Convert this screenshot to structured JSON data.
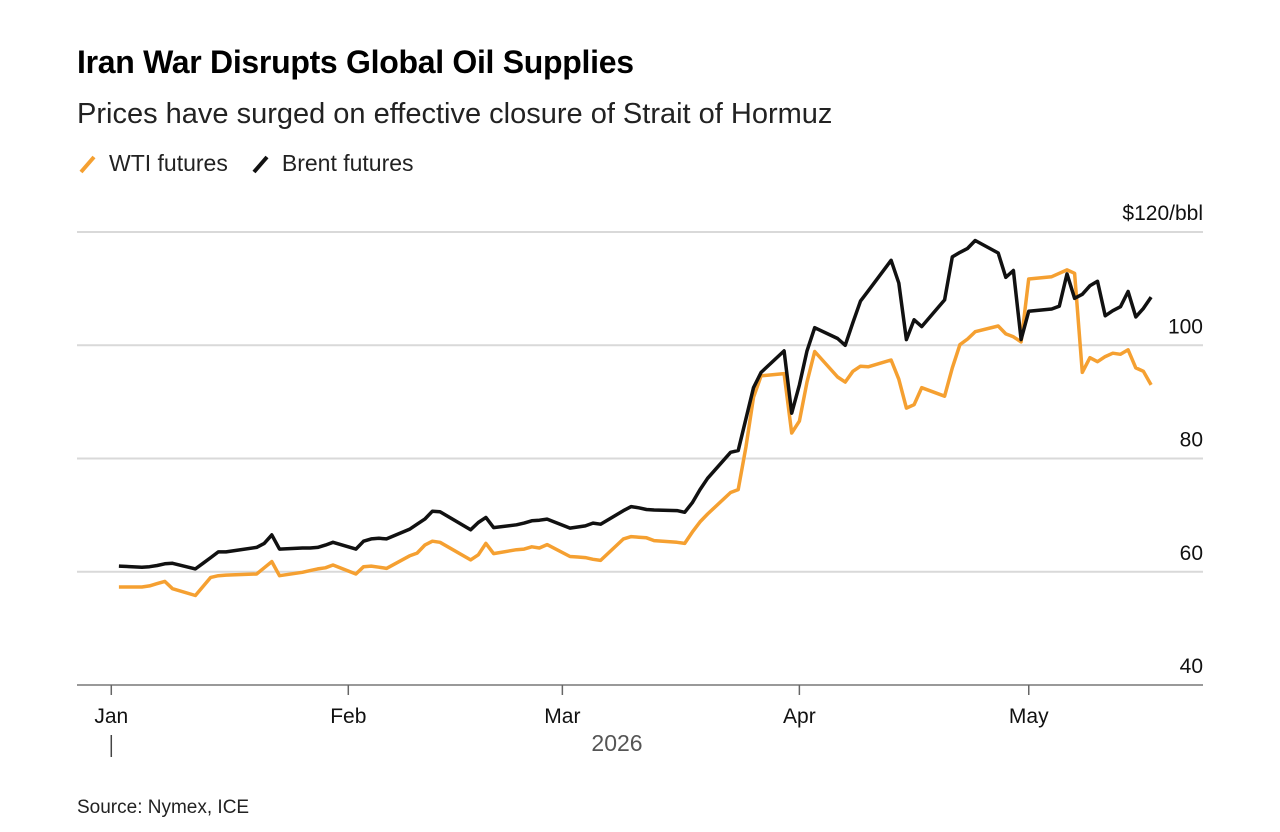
{
  "chart_data": {
    "type": "line",
    "title": "Iran War Disrupts Global Oil Supplies",
    "subtitle": "Prices have surged on effective closure of Strait of Hormuz",
    "source": "Source: Nymex, ICE",
    "x_year_label": "2026",
    "x_ticks": [
      {
        "date": "2026-01-01",
        "label": "Jan"
      },
      {
        "date": "2026-02-01",
        "label": "Feb"
      },
      {
        "date": "2026-03-01",
        "label": "Mar"
      },
      {
        "date": "2026-04-01",
        "label": "Apr"
      },
      {
        "date": "2026-05-01",
        "label": "May"
      }
    ],
    "x_range": [
      "2025-12-30",
      "2026-05-20"
    ],
    "y_ticks": [
      {
        "value": 40,
        "label": "40"
      },
      {
        "value": 60,
        "label": "60"
      },
      {
        "value": 80,
        "label": "80"
      },
      {
        "value": 100,
        "label": "100"
      },
      {
        "value": 120,
        "label": "$120/bbl"
      }
    ],
    "ylim": [
      40,
      120
    ],
    "grid": true,
    "legend_position": "top-left",
    "series": [
      {
        "name": "WTI futures",
        "color": "#f5a031",
        "points": [
          [
            "2026-01-02",
            57.3
          ],
          [
            "2026-01-05",
            57.3
          ],
          [
            "2026-01-06",
            57.5
          ],
          [
            "2026-01-07",
            57.9
          ],
          [
            "2026-01-08",
            58.3
          ],
          [
            "2026-01-09",
            57.0
          ],
          [
            "2026-01-12",
            55.8
          ],
          [
            "2026-01-13",
            57.4
          ],
          [
            "2026-01-14",
            59.0
          ],
          [
            "2026-01-15",
            59.3
          ],
          [
            "2026-01-16",
            59.4
          ],
          [
            "2026-01-20",
            59.6
          ],
          [
            "2026-01-21",
            60.7
          ],
          [
            "2026-01-22",
            61.8
          ],
          [
            "2026-01-23",
            59.3
          ],
          [
            "2026-01-26",
            59.9
          ],
          [
            "2026-01-27",
            60.2
          ],
          [
            "2026-01-28",
            60.5
          ],
          [
            "2026-01-29",
            60.7
          ],
          [
            "2026-01-30",
            61.2
          ],
          [
            "2026-02-02",
            59.6
          ],
          [
            "2026-02-03",
            60.9
          ],
          [
            "2026-02-04",
            61.0
          ],
          [
            "2026-02-05",
            60.8
          ],
          [
            "2026-02-06",
            60.6
          ],
          [
            "2026-02-09",
            62.8
          ],
          [
            "2026-02-10",
            63.3
          ],
          [
            "2026-02-11",
            64.7
          ],
          [
            "2026-02-12",
            65.4
          ],
          [
            "2026-02-13",
            65.2
          ],
          [
            "2026-02-17",
            62.1
          ],
          [
            "2026-02-18",
            63.0
          ],
          [
            "2026-02-19",
            65.0
          ],
          [
            "2026-02-20",
            63.2
          ],
          [
            "2026-02-23",
            63.9
          ],
          [
            "2026-02-24",
            64.0
          ],
          [
            "2026-02-25",
            64.4
          ],
          [
            "2026-02-26",
            64.2
          ],
          [
            "2026-02-27",
            64.8
          ],
          [
            "2026-03-02",
            62.7
          ],
          [
            "2026-03-03",
            62.6
          ],
          [
            "2026-03-04",
            62.5
          ],
          [
            "2026-03-05",
            62.2
          ],
          [
            "2026-03-06",
            62.0
          ],
          [
            "2026-03-09",
            65.8
          ],
          [
            "2026-03-10",
            66.2
          ],
          [
            "2026-03-11",
            66.1
          ],
          [
            "2026-03-12",
            66.0
          ],
          [
            "2026-03-13",
            65.5
          ],
          [
            "2026-03-16",
            65.2
          ],
          [
            "2026-03-17",
            65.0
          ],
          [
            "2026-03-18",
            67.0
          ],
          [
            "2026-03-19",
            68.8
          ],
          [
            "2026-03-20",
            70.2
          ],
          [
            "2026-03-23",
            74.0
          ],
          [
            "2026-03-24",
            74.5
          ],
          [
            "2026-03-25",
            82.0
          ],
          [
            "2026-03-26",
            90.8
          ],
          [
            "2026-03-27",
            94.6
          ],
          [
            "2026-03-30",
            95.0
          ],
          [
            "2026-03-31",
            84.5
          ],
          [
            "2026-04-01",
            86.6
          ],
          [
            "2026-04-02",
            93.5
          ],
          [
            "2026-04-03",
            98.9
          ],
          [
            "2026-04-06",
            94.4
          ],
          [
            "2026-04-07",
            93.5
          ],
          [
            "2026-04-08",
            95.4
          ],
          [
            "2026-04-09",
            96.3
          ],
          [
            "2026-04-10",
            96.2
          ],
          [
            "2026-04-13",
            97.4
          ],
          [
            "2026-04-14",
            94.0
          ],
          [
            "2026-04-15",
            88.9
          ],
          [
            "2026-04-16",
            89.5
          ],
          [
            "2026-04-17",
            92.5
          ],
          [
            "2026-04-20",
            91.0
          ],
          [
            "2026-04-21",
            96.0
          ],
          [
            "2026-04-22",
            100.1
          ],
          [
            "2026-04-23",
            101.1
          ],
          [
            "2026-04-24",
            102.4
          ],
          [
            "2026-04-27",
            103.4
          ],
          [
            "2026-04-28",
            102.0
          ],
          [
            "2026-04-29",
            101.5
          ],
          [
            "2026-04-30",
            100.6
          ],
          [
            "2026-05-01",
            111.7
          ],
          [
            "2026-05-04",
            112.1
          ],
          [
            "2026-05-05",
            112.7
          ],
          [
            "2026-05-06",
            113.3
          ],
          [
            "2026-05-07",
            112.7
          ],
          [
            "2026-05-08",
            95.2
          ],
          [
            "2026-05-09",
            97.8
          ],
          [
            "2026-05-10",
            97.1
          ],
          [
            "2026-05-11",
            98.0
          ],
          [
            "2026-05-12",
            98.6
          ],
          [
            "2026-05-13",
            98.4
          ],
          [
            "2026-05-14",
            99.2
          ],
          [
            "2026-05-15",
            96.0
          ],
          [
            "2026-05-16",
            95.4
          ],
          [
            "2026-05-17",
            93.0
          ]
        ]
      },
      {
        "name": "Brent futures",
        "color": "#111111",
        "points": [
          [
            "2026-01-02",
            61.0
          ],
          [
            "2026-01-05",
            60.8
          ],
          [
            "2026-01-06",
            60.9
          ],
          [
            "2026-01-07",
            61.1
          ],
          [
            "2026-01-08",
            61.4
          ],
          [
            "2026-01-09",
            61.5
          ],
          [
            "2026-01-12",
            60.5
          ],
          [
            "2026-01-13",
            61.5
          ],
          [
            "2026-01-14",
            62.5
          ],
          [
            "2026-01-15",
            63.5
          ],
          [
            "2026-01-16",
            63.5
          ],
          [
            "2026-01-20",
            64.3
          ],
          [
            "2026-01-21",
            65.0
          ],
          [
            "2026-01-22",
            66.5
          ],
          [
            "2026-01-23",
            64.0
          ],
          [
            "2026-01-26",
            64.2
          ],
          [
            "2026-01-27",
            64.2
          ],
          [
            "2026-01-28",
            64.3
          ],
          [
            "2026-01-29",
            64.7
          ],
          [
            "2026-01-30",
            65.2
          ],
          [
            "2026-02-02",
            64.0
          ],
          [
            "2026-02-03",
            65.4
          ],
          [
            "2026-02-04",
            65.8
          ],
          [
            "2026-02-05",
            65.9
          ],
          [
            "2026-02-06",
            65.8
          ],
          [
            "2026-02-09",
            67.5
          ],
          [
            "2026-02-10",
            68.4
          ],
          [
            "2026-02-11",
            69.3
          ],
          [
            "2026-02-12",
            70.7
          ],
          [
            "2026-02-13",
            70.6
          ],
          [
            "2026-02-17",
            67.4
          ],
          [
            "2026-02-18",
            68.7
          ],
          [
            "2026-02-19",
            69.6
          ],
          [
            "2026-02-20",
            67.8
          ],
          [
            "2026-02-23",
            68.3
          ],
          [
            "2026-02-24",
            68.6
          ],
          [
            "2026-02-25",
            69.0
          ],
          [
            "2026-02-26",
            69.1
          ],
          [
            "2026-02-27",
            69.3
          ],
          [
            "2026-03-02",
            67.7
          ],
          [
            "2026-03-03",
            67.9
          ],
          [
            "2026-03-04",
            68.1
          ],
          [
            "2026-03-05",
            68.6
          ],
          [
            "2026-03-06",
            68.4
          ],
          [
            "2026-03-09",
            70.8
          ],
          [
            "2026-03-10",
            71.5
          ],
          [
            "2026-03-11",
            71.3
          ],
          [
            "2026-03-12",
            71.0
          ],
          [
            "2026-03-13",
            70.9
          ],
          [
            "2026-03-16",
            70.8
          ],
          [
            "2026-03-17",
            70.5
          ],
          [
            "2026-03-18",
            72.2
          ],
          [
            "2026-03-19",
            74.5
          ],
          [
            "2026-03-20",
            76.5
          ],
          [
            "2026-03-23",
            81.1
          ],
          [
            "2026-03-24",
            81.4
          ],
          [
            "2026-03-25",
            87.0
          ],
          [
            "2026-03-26",
            92.5
          ],
          [
            "2026-03-27",
            95.2
          ],
          [
            "2026-03-30",
            99.0
          ],
          [
            "2026-03-31",
            88.0
          ],
          [
            "2026-04-01",
            93.0
          ],
          [
            "2026-04-02",
            99.0
          ],
          [
            "2026-04-03",
            103.1
          ],
          [
            "2026-04-06",
            101.2
          ],
          [
            "2026-04-07",
            100.0
          ],
          [
            "2026-04-08",
            104.0
          ],
          [
            "2026-04-09",
            107.8
          ],
          [
            "2026-04-10",
            109.6
          ],
          [
            "2026-04-13",
            115.0
          ],
          [
            "2026-04-14",
            111.0
          ],
          [
            "2026-04-15",
            101.0
          ],
          [
            "2026-04-16",
            104.5
          ],
          [
            "2026-04-17",
            103.3
          ],
          [
            "2026-04-20",
            108.0
          ],
          [
            "2026-04-21",
            115.6
          ],
          [
            "2026-04-22",
            116.4
          ],
          [
            "2026-04-23",
            117.1
          ],
          [
            "2026-04-24",
            118.5
          ],
          [
            "2026-04-27",
            116.3
          ],
          [
            "2026-04-28",
            112.0
          ],
          [
            "2026-04-29",
            113.2
          ],
          [
            "2026-04-30",
            101.0
          ],
          [
            "2026-05-01",
            106.0
          ],
          [
            "2026-05-04",
            106.4
          ],
          [
            "2026-05-05",
            106.9
          ],
          [
            "2026-05-06",
            112.6
          ],
          [
            "2026-05-07",
            108.3
          ],
          [
            "2026-05-08",
            109.0
          ],
          [
            "2026-05-09",
            110.5
          ],
          [
            "2026-05-10",
            111.3
          ],
          [
            "2026-05-11",
            105.2
          ],
          [
            "2026-05-12",
            106.1
          ],
          [
            "2026-05-13",
            106.8
          ],
          [
            "2026-05-14",
            109.5
          ],
          [
            "2026-05-15",
            105.0
          ],
          [
            "2026-05-16",
            106.5
          ],
          [
            "2026-05-17",
            108.5
          ]
        ]
      }
    ]
  }
}
